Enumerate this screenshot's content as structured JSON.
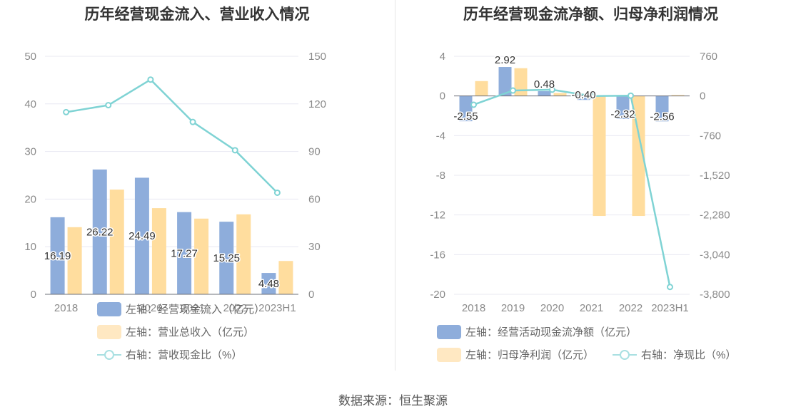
{
  "chart_data": [
    {
      "type": "bar",
      "title": "历年经营现金流入、营业收入情况",
      "categories": [
        "2018",
        "2019",
        "2020",
        "2021",
        "2022",
        "2023H1"
      ],
      "left_axis": {
        "min": 0,
        "max": 50,
        "ticks": [
          "0",
          "10",
          "20",
          "30",
          "40",
          "50"
        ]
      },
      "right_axis": {
        "min": 0,
        "max": 150,
        "ticks": [
          "0",
          "30",
          "60",
          "90",
          "120",
          "150"
        ]
      },
      "series": [
        {
          "name": "左轴：经营现金流入（亿元）",
          "type": "bar",
          "axis": "left",
          "color": "#8eaddb",
          "values": [
            16.19,
            26.22,
            24.49,
            17.27,
            15.25,
            4.48
          ],
          "labels": [
            "16.19",
            "26.22",
            "24.49",
            "17.27",
            "15.25",
            "4.48"
          ]
        },
        {
          "name": "左轴：营业总收入（亿元）",
          "type": "bar",
          "axis": "left",
          "color": "#ffdd9e",
          "values": [
            14.1,
            22.0,
            18.1,
            15.9,
            16.8,
            7.0
          ]
        },
        {
          "name": "右轴：营收现金比（%）",
          "type": "line",
          "axis": "right",
          "color": "#7fd3d4",
          "values": [
            114.8,
            119.2,
            135.3,
            108.6,
            90.8,
            64.0
          ]
        }
      ]
    },
    {
      "type": "bar",
      "title": "历年经营现金流净额、归母净利润情况",
      "categories": [
        "2018",
        "2019",
        "2020",
        "2021",
        "2022",
        "2023H1"
      ],
      "left_axis": {
        "min": -20,
        "max": 4,
        "ticks": [
          "4",
          "0",
          "-4",
          "-8",
          "-12",
          "-16",
          "-20"
        ],
        "tick_values": [
          4,
          0,
          -4,
          -8,
          -12,
          -16,
          -20
        ]
      },
      "right_axis": {
        "min": -3800,
        "max": 760,
        "ticks": [
          "760",
          "0",
          "-760",
          "-1,520",
          "-2,280",
          "-3,040",
          "-3,800"
        ]
      },
      "series": [
        {
          "name": "左轴：经营活动现金流净额（亿元）",
          "type": "bar",
          "axis": "left",
          "color": "#8eaddb",
          "values": [
            -2.55,
            2.92,
            0.48,
            -0.4,
            -2.32,
            -2.56
          ],
          "labels": [
            "-2.55",
            "2.92",
            "0.48",
            "-0.40",
            "-2.32",
            "-2.56"
          ]
        },
        {
          "name": "左轴：归母净利润（亿元）",
          "type": "bar",
          "axis": "left",
          "color": "#ffdd9e",
          "values": [
            1.5,
            2.8,
            0.3,
            -12.1,
            -12.1,
            0.1
          ]
        },
        {
          "name": "右轴：净现比（%）",
          "type": "line",
          "axis": "right",
          "color": "#7fd3d4",
          "values": [
            -168,
            104,
            120,
            -1,
            6,
            -3660
          ]
        }
      ]
    }
  ],
  "source": "数据来源：恒生聚源"
}
